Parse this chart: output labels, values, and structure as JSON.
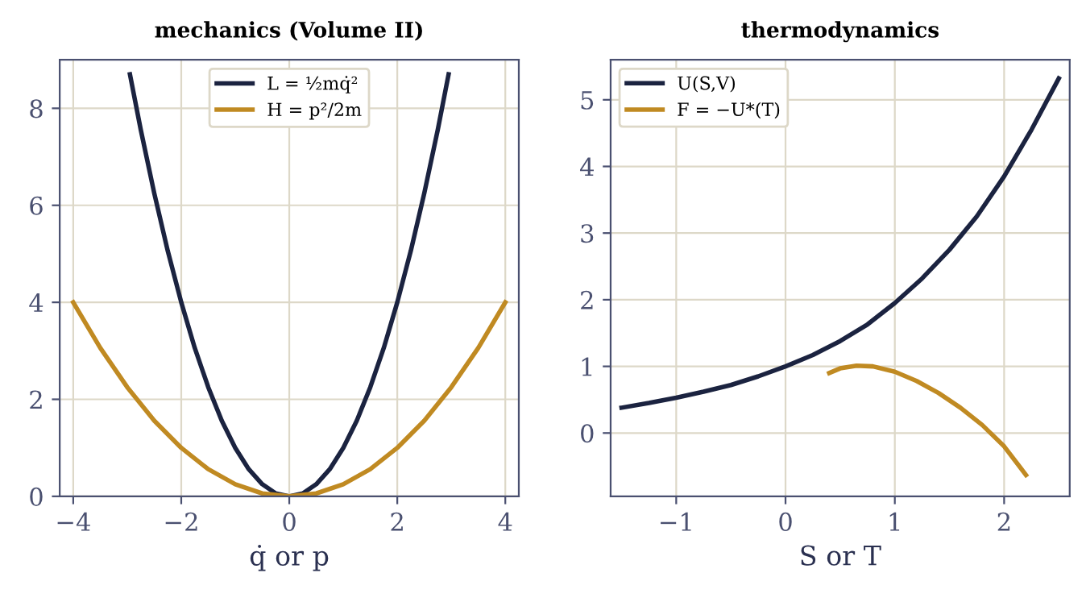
{
  "chart_data": [
    {
      "type": "line",
      "title": "mechanics (Volume II)",
      "xlabel": "q̇ or p",
      "xlim": [
        -4.25,
        4.25
      ],
      "ylim": [
        0,
        9
      ],
      "xticks": [
        {
          "value": -4,
          "label": "−4"
        },
        {
          "value": -2,
          "label": "−2"
        },
        0,
        2,
        4
      ],
      "yticks": [
        0,
        2,
        4,
        6,
        8
      ],
      "grid": true,
      "legend": "top",
      "line_style": "solid",
      "marker": "none",
      "series": [
        {
          "name": "L = ½mq̇²",
          "color": "#1b2340",
          "x": [
            -2.95,
            -2.75,
            -2.5,
            -2.25,
            -2,
            -1.75,
            -1.5,
            -1.25,
            -1,
            -0.75,
            -0.5,
            -0.25,
            0,
            0.25,
            0.5,
            0.75,
            1,
            1.25,
            1.5,
            1.75,
            2,
            2.25,
            2.5,
            2.75,
            2.95
          ],
          "values": [
            8.7,
            7.56,
            6.25,
            5.06,
            4,
            3.06,
            2.25,
            1.56,
            1,
            0.56,
            0.25,
            0.06,
            0,
            0.06,
            0.25,
            0.56,
            1,
            1.56,
            2.25,
            3.06,
            4,
            5.06,
            6.25,
            7.56,
            8.7
          ]
        },
        {
          "name": "H = p²/2m",
          "color": "#c08a22",
          "x": [
            -4,
            -3.5,
            -3,
            -2.5,
            -2,
            -1.5,
            -1,
            -0.5,
            0,
            0.5,
            1,
            1.5,
            2,
            2.5,
            3,
            3.5,
            4
          ],
          "values": [
            4,
            3.06,
            2.25,
            1.56,
            1,
            0.56,
            0.25,
            0.06,
            0,
            0.06,
            0.25,
            0.56,
            1,
            1.56,
            2.25,
            3.06,
            4
          ]
        }
      ]
    },
    {
      "type": "line",
      "title": "thermodynamics",
      "xlabel": "S or T",
      "xlim": [
        -1.6,
        2.6
      ],
      "ylim": [
        -0.95,
        5.6
      ],
      "xticks": [
        {
          "value": -1,
          "label": "−1"
        },
        0,
        1,
        2
      ],
      "yticks": [
        0,
        1,
        2,
        3,
        4,
        5
      ],
      "grid": true,
      "legend": "top left",
      "line_style": "solid",
      "marker": "none",
      "series": [
        {
          "name": "U(S,V)",
          "color": "#1b2340",
          "x": [
            -1.5,
            -1.25,
            -1,
            -0.75,
            -0.5,
            -0.25,
            0,
            0.25,
            0.5,
            0.75,
            1,
            1.25,
            1.5,
            1.75,
            2,
            2.25,
            2.5
          ],
          "values": [
            0.38,
            0.45,
            0.53,
            0.62,
            0.72,
            0.85,
            1.0,
            1.17,
            1.38,
            1.63,
            1.95,
            2.32,
            2.75,
            3.25,
            3.85,
            4.55,
            5.32
          ]
        },
        {
          "name": "F = −U*(T)",
          "color": "#c08a22",
          "x": [
            0.4,
            0.5,
            0.65,
            0.8,
            1.0,
            1.2,
            1.4,
            1.6,
            1.8,
            2.0,
            2.2
          ],
          "values": [
            0.9,
            0.97,
            1.01,
            1.0,
            0.92,
            0.78,
            0.6,
            0.38,
            0.12,
            -0.2,
            -0.63
          ]
        }
      ]
    }
  ]
}
